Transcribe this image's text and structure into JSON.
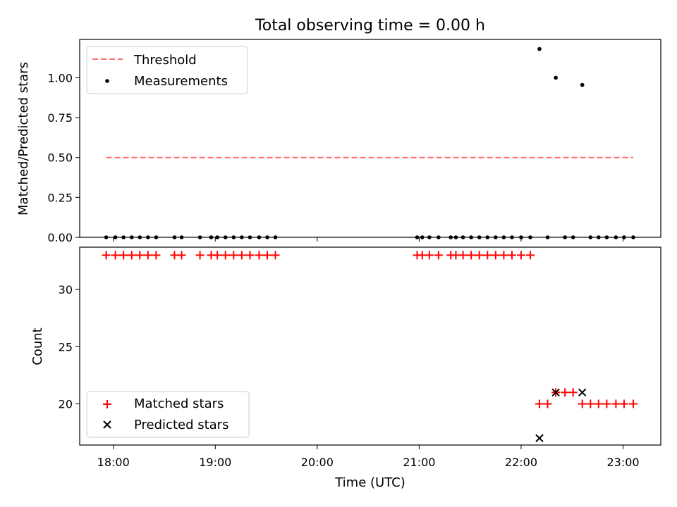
{
  "chart_data": {
    "type": "scatter",
    "title": "Total observing time = 0.00 h",
    "xlabel": "Time (UTC)",
    "x_unit": "hours UTC",
    "xlim": [
      17.67,
      23.37
    ],
    "xticks": [
      18,
      19,
      20,
      21,
      22,
      23
    ],
    "xtick_labels": [
      "18:00",
      "19:00",
      "20:00",
      "21:00",
      "22:00",
      "23:00"
    ],
    "panels": [
      {
        "id": "ratio",
        "ylabel": "Matched/Predicted stars",
        "ylim": [
          0,
          1.24
        ],
        "yticks": [
          0,
          0.25,
          0.5,
          0.75,
          1.0
        ],
        "ytick_labels": [
          "0.00",
          "0.25",
          "0.50",
          "0.75",
          "1.00"
        ],
        "legend": {
          "position": "upper-left",
          "entries": [
            "Threshold",
            "Measurements"
          ]
        },
        "threshold": {
          "name": "Threshold",
          "x": [
            17.93,
            23.1
          ],
          "y": 0.5,
          "color": "#ff7070",
          "style": "dashed"
        },
        "measurements": {
          "name": "Measurements",
          "color": "#000000",
          "x": [
            17.93,
            18.02,
            18.1,
            18.18,
            18.26,
            18.34,
            18.42,
            18.6,
            18.67,
            18.85,
            18.96,
            19.02,
            19.1,
            19.18,
            19.26,
            19.34,
            19.43,
            19.51,
            19.59,
            20.98,
            21.03,
            21.1,
            21.19,
            21.31,
            21.36,
            21.43,
            21.51,
            21.59,
            21.67,
            21.75,
            21.83,
            21.91,
            22.0,
            22.09,
            22.18,
            22.26,
            22.34,
            22.43,
            22.51,
            22.6,
            22.68,
            22.76,
            22.84,
            22.93,
            23.01,
            23.1
          ],
          "y": [
            0,
            0,
            0,
            0,
            0,
            0,
            0,
            0,
            0,
            0,
            0,
            0,
            0,
            0,
            0,
            0,
            0,
            0,
            0,
            0,
            0,
            0,
            0,
            0,
            0,
            0,
            0,
            0,
            0,
            0,
            0,
            0,
            0,
            0,
            1.18,
            0,
            1.0,
            0,
            0,
            0.955,
            0,
            0,
            0,
            0,
            0,
            0
          ]
        }
      },
      {
        "id": "count",
        "ylabel": "Count",
        "ylim": [
          16.4,
          33.7
        ],
        "yticks": [
          20,
          25,
          30
        ],
        "ytick_labels": [
          "20",
          "25",
          "30"
        ],
        "legend": {
          "position": "lower-left",
          "entries": [
            "Matched stars",
            "Predicted stars"
          ]
        },
        "matched": {
          "name": "Matched stars",
          "color": "#ff0000",
          "marker": "plus",
          "x": [
            17.93,
            18.02,
            18.1,
            18.18,
            18.26,
            18.34,
            18.42,
            18.6,
            18.67,
            18.85,
            18.96,
            19.02,
            19.1,
            19.18,
            19.26,
            19.34,
            19.43,
            19.51,
            19.59,
            20.98,
            21.03,
            21.1,
            21.19,
            21.31,
            21.36,
            21.43,
            21.51,
            21.59,
            21.67,
            21.75,
            21.83,
            21.91,
            22.0,
            22.09,
            22.18,
            22.26,
            22.34,
            22.43,
            22.51,
            22.6,
            22.68,
            22.76,
            22.84,
            22.93,
            23.01,
            23.1
          ],
          "y": [
            33,
            33,
            33,
            33,
            33,
            33,
            33,
            33,
            33,
            33,
            33,
            33,
            33,
            33,
            33,
            33,
            33,
            33,
            33,
            33,
            33,
            33,
            33,
            33,
            33,
            33,
            33,
            33,
            33,
            33,
            33,
            33,
            33,
            33,
            20,
            20,
            21,
            21,
            21,
            20,
            20,
            20,
            20,
            20,
            20,
            20
          ]
        },
        "predicted": {
          "name": "Predicted stars",
          "color": "#000000",
          "marker": "x",
          "x": [
            22.18,
            22.34,
            22.6
          ],
          "y": [
            17,
            21,
            21
          ]
        }
      }
    ]
  }
}
